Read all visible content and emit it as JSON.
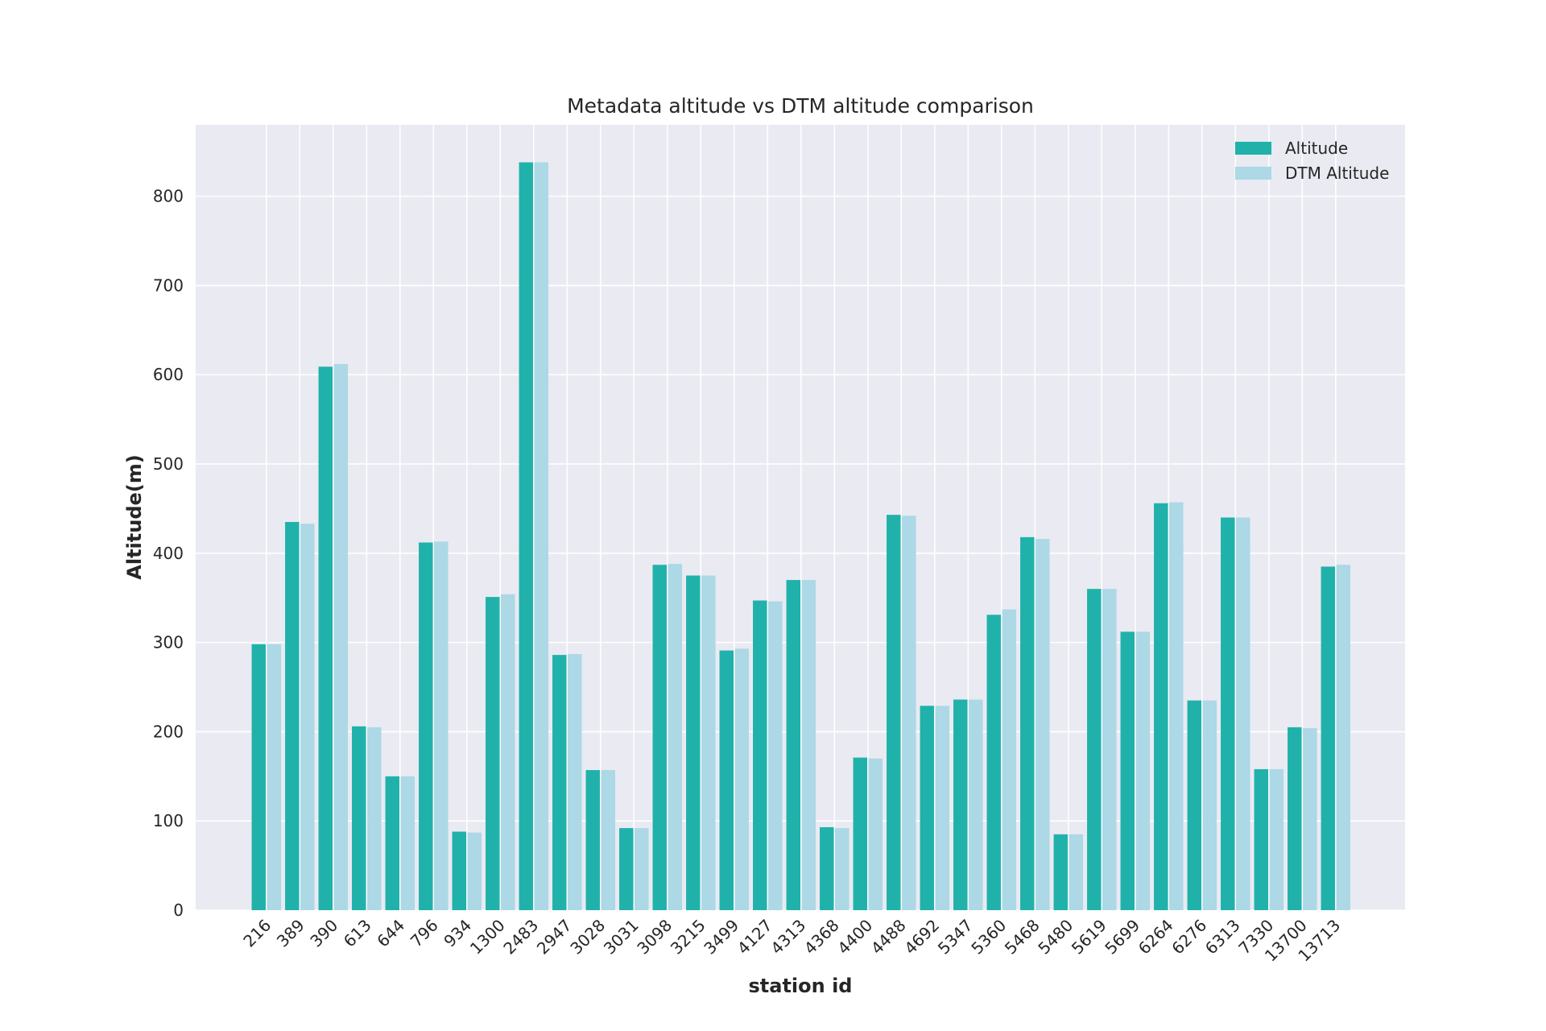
{
  "chart_data": {
    "type": "bar",
    "title": "Metadata altitude vs DTM altitude comparison",
    "xlabel": "station id",
    "ylabel": "Altitude(m)",
    "ylim": [
      0,
      880
    ],
    "yticks": [
      0,
      100,
      200,
      300,
      400,
      500,
      600,
      700,
      800
    ],
    "grid": true,
    "legend_position": "top-right",
    "categories": [
      "216",
      "389",
      "390",
      "613",
      "644",
      "796",
      "934",
      "1300",
      "2483",
      "2947",
      "3028",
      "3031",
      "3098",
      "3215",
      "3499",
      "4127",
      "4313",
      "4368",
      "4400",
      "4488",
      "4692",
      "5347",
      "5360",
      "5468",
      "5480",
      "5619",
      "5699",
      "6264",
      "6276",
      "6313",
      "7330",
      "13700",
      "13713"
    ],
    "series": [
      {
        "name": "Altitude",
        "color": "#20b2aa",
        "values": [
          298,
          435,
          609,
          206,
          150,
          412,
          88,
          351,
          838,
          286,
          157,
          92,
          387,
          375,
          291,
          347,
          370,
          93,
          171,
          443,
          229,
          236,
          331,
          418,
          85,
          360,
          312,
          456,
          235,
          440,
          158,
          205,
          385
        ]
      },
      {
        "name": "DTM Altitude",
        "color": "#add8e6",
        "values": [
          298,
          433,
          612,
          205,
          150,
          413,
          87,
          354,
          838,
          287,
          157,
          92,
          388,
          375,
          293,
          346,
          370,
          92,
          170,
          442,
          229,
          236,
          337,
          416,
          85,
          360,
          312,
          457,
          235,
          440,
          158,
          204,
          387
        ]
      }
    ]
  },
  "colors": {
    "plot_background": "#eaeaf2",
    "gridline": "#ffffff",
    "text": "#262626"
  }
}
